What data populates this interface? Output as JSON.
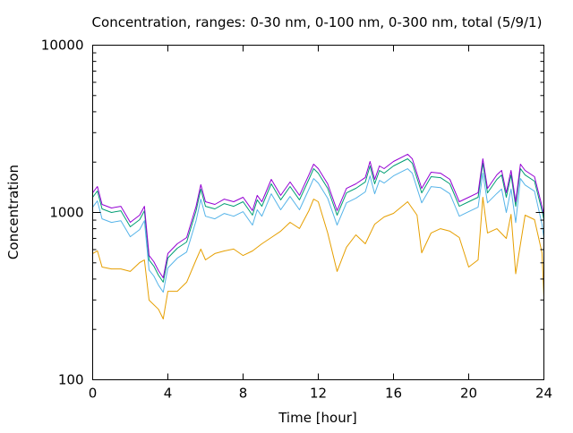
{
  "chart_data": {
    "type": "line",
    "title": "Concentration, ranges: 0-30 nm, 0-100 nm, 0-300 nm, total (5/9/1)",
    "xlabel": "Time [hour]",
    "ylabel": "Concentration",
    "xlim": [
      0,
      24
    ],
    "ylim": [
      100,
      10000
    ],
    "yscale": "log",
    "xticks": [
      "0",
      "4",
      "8",
      "12",
      "16",
      "20",
      "24"
    ],
    "yticks": [
      "100",
      "1000",
      "10000"
    ],
    "grid": false,
    "series": [
      {
        "name": "0-30 nm",
        "color": "#e69f00",
        "x": [
          0,
          0.25,
          0.5,
          1,
          1.5,
          2,
          2.5,
          2.75,
          3,
          3.5,
          3.75,
          4,
          4.5,
          5,
          5.5,
          5.75,
          6,
          6.5,
          7,
          7.5,
          8,
          8.5,
          9,
          9.5,
          10,
          10.5,
          11,
          11.5,
          11.75,
          12,
          12.5,
          13,
          13.5,
          14,
          14.5,
          15,
          15.5,
          16,
          16.75,
          17.25,
          17.5,
          18,
          18.5,
          19,
          19.5,
          20,
          20.5,
          20.75,
          21,
          21.5,
          22,
          22.25,
          22.5,
          23,
          23.5,
          23.9,
          24
        ],
        "values": [
          568,
          590,
          472,
          460,
          460,
          444,
          502,
          520,
          299,
          264,
          231,
          338,
          338,
          383,
          521,
          604,
          521,
          568,
          589,
          604,
          553,
          589,
          650,
          708,
          773,
          873,
          802,
          1025,
          1202,
          1159,
          754,
          444,
          620,
          735,
          650,
          851,
          940,
          988,
          1159,
          964,
          574,
          754,
          800,
          773,
          708,
          472,
          521,
          1233,
          754,
          800,
          700,
          975,
          430,
          964,
          906,
          574,
          310
        ]
      },
      {
        "name": "0-100 nm",
        "color": "#56b4e9",
        "x": [
          0,
          0.25,
          0.5,
          1,
          1.5,
          2,
          2.5,
          2.75,
          3,
          3.25,
          3.5,
          3.75,
          4,
          4.5,
          5,
          5.5,
          5.75,
          6,
          6.5,
          7,
          7.5,
          8,
          8.5,
          8.75,
          9,
          9.5,
          10,
          10.5,
          11,
          11.5,
          11.75,
          12,
          12.5,
          13,
          13.5,
          14,
          14.5,
          14.75,
          15,
          15.25,
          15.5,
          16,
          16.75,
          17,
          17.5,
          18,
          18.5,
          19,
          19.5,
          20,
          20.5,
          20.75,
          21,
          21.5,
          21.75,
          22,
          22.25,
          22.5,
          22.75,
          23,
          23.5,
          23.9,
          24
        ],
        "values": [
          1076,
          1172,
          916,
          872,
          893,
          716,
          790,
          893,
          453,
          417,
          368,
          334,
          466,
          533,
          580,
          893,
          1202,
          950,
          916,
          986,
          950,
          1011,
          841,
          1037,
          950,
          1294,
          1037,
          1247,
          1037,
          1377,
          1595,
          1499,
          1216,
          841,
          1142,
          1216,
          1327,
          1655,
          1294,
          1556,
          1499,
          1655,
          1827,
          1717,
          1142,
          1428,
          1409,
          1294,
          950,
          1011,
          1076,
          1717,
          1142,
          1300,
          1380,
          1000,
          1380,
          870,
          1595,
          1460,
          1340,
          850,
          700
        ]
      },
      {
        "name": "0-300 nm",
        "color": "#009e73",
        "x": [
          0,
          0.25,
          0.5,
          1,
          1.5,
          2,
          2.5,
          2.75,
          3,
          3.25,
          3.5,
          3.75,
          4,
          4.5,
          5,
          5.5,
          5.75,
          6,
          6.5,
          7,
          7.5,
          8,
          8.5,
          8.75,
          9,
          9.5,
          10,
          10.5,
          11,
          11.5,
          11.75,
          12,
          12.5,
          13,
          13.5,
          14,
          14.5,
          14.75,
          15,
          15.25,
          15.5,
          16,
          16.75,
          17,
          17.5,
          18,
          18.5,
          19,
          19.5,
          20,
          20.5,
          20.75,
          21,
          21.5,
          21.75,
          22,
          22.25,
          22.5,
          22.75,
          23,
          23.5,
          23.9,
          24
        ],
        "values": [
          1233,
          1343,
          1050,
          1000,
          1024,
          821,
          906,
          1024,
          520,
          478,
          422,
          383,
          534,
          611,
          666,
          1024,
          1378,
          1089,
          1050,
          1130,
          1089,
          1159,
          964,
          1189,
          1089,
          1483,
          1189,
          1430,
          1189,
          1578,
          1828,
          1718,
          1394,
          964,
          1309,
          1394,
          1521,
          1897,
          1483,
          1783,
          1718,
          1897,
          2094,
          1968,
          1309,
          1637,
          1615,
          1483,
          1089,
          1159,
          1233,
          1968,
          1309,
          1578,
          1676,
          1233,
          1676,
          1089,
          1828,
          1676,
          1539,
          1024,
          906
        ]
      },
      {
        "name": "total",
        "color": "#9400d3",
        "x": [
          0,
          0.25,
          0.5,
          1,
          1.5,
          2,
          2.5,
          2.75,
          3,
          3.25,
          3.5,
          3.75,
          4,
          4.5,
          5,
          5.5,
          5.75,
          6,
          6.5,
          7,
          7.5,
          8,
          8.5,
          8.75,
          9,
          9.5,
          10,
          10.5,
          11,
          11.5,
          11.75,
          12,
          12.5,
          13,
          13.5,
          14,
          14.5,
          14.75,
          15,
          15.25,
          15.5,
          16,
          16.75,
          17,
          17.5,
          18,
          18.5,
          19,
          19.5,
          20,
          20.5,
          20.75,
          21,
          21.5,
          21.75,
          22,
          22.25,
          22.5,
          22.75,
          23,
          23.5,
          23.9,
          24
        ],
        "values": [
          1312,
          1429,
          1117,
          1064,
          1089,
          873,
          964,
          1089,
          553,
          508,
          449,
          407,
          568,
          650,
          708,
          1089,
          1466,
          1159,
          1117,
          1202,
          1159,
          1233,
          1026,
          1265,
          1159,
          1578,
          1265,
          1521,
          1265,
          1679,
          1945,
          1828,
          1483,
          1026,
          1393,
          1483,
          1618,
          2018,
          1578,
          1897,
          1828,
          2018,
          2228,
          2094,
          1393,
          1741,
          1718,
          1578,
          1159,
          1233,
          1312,
          2094,
          1393,
          1679,
          1783,
          1312,
          1783,
          1159,
          1945,
          1783,
          1637,
          1089,
          964
        ]
      }
    ]
  }
}
